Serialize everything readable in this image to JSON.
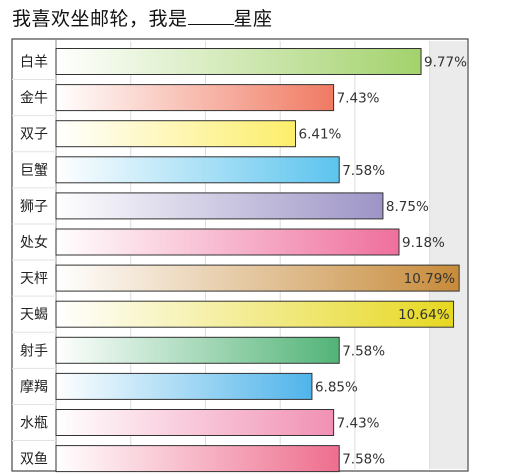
{
  "chart_data": {
    "type": "bar",
    "orientation": "horizontal",
    "title_prefix": "我喜欢坐邮轮，我是",
    "title_suffix": "星座",
    "unit": "%",
    "categories": [
      "白羊",
      "金牛",
      "双子",
      "巨蟹",
      "狮子",
      "处女",
      "天枰",
      "天蝎",
      "射手",
      "摩羯",
      "水瓶",
      "双鱼"
    ],
    "values": [
      9.77,
      7.43,
      6.41,
      7.58,
      8.75,
      9.18,
      10.79,
      10.64,
      7.58,
      6.85,
      7.43,
      7.58
    ],
    "value_labels": [
      "9.77%",
      "7.43%",
      "6.41%",
      "7.58%",
      "8.75%",
      "9.18%",
      "10.79%",
      "10.64%",
      "7.58%",
      "6.85%",
      "7.43%",
      "7.58%"
    ],
    "bar_colors": [
      "#a3d26c",
      "#f07a62",
      "#fcee6a",
      "#5cc4ee",
      "#9d94c6",
      "#ef6f9d",
      "#c78b3a",
      "#e6d820",
      "#52b477",
      "#4fb4ea",
      "#f190b4",
      "#ee6e8e"
    ],
    "xlim": [
      0,
      11.0
    ],
    "grid": true,
    "legend": "none"
  }
}
